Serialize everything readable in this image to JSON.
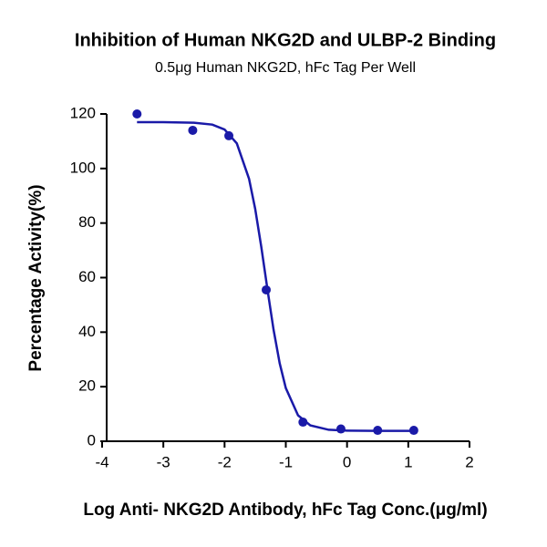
{
  "chart_data": {
    "type": "scatter",
    "title": "Inhibition of Human NKG2D and ULBP-2 Binding",
    "subtitle": "0.5μg Human NKG2D, hFc Tag Per Well",
    "x_label": "Log Anti- NKG2D Antibody, hFc Tag Conc.(μg/ml)",
    "y_label": "Percentage Activity(%)",
    "series": [
      {
        "mode": "markers",
        "color": "#1a1aa8",
        "x": [
          -3.43,
          -2.52,
          -1.93,
          -1.32,
          -0.72,
          -0.1,
          0.5,
          1.09
        ],
        "values": [
          120,
          114,
          112,
          55.5,
          7,
          4.5,
          4,
          4
        ]
      },
      {
        "mode": "line",
        "color": "#1a1aa8",
        "x": [
          -3.43,
          -3,
          -2.5,
          -2.2,
          -2,
          -1.8,
          -1.6,
          -1.5,
          -1.4,
          -1.3,
          -1.2,
          -1.1,
          -1,
          -0.8,
          -0.6,
          -0.3,
          0,
          0.5,
          1.09
        ],
        "values": [
          117,
          117,
          116.8,
          116.1,
          114.3,
          109.2,
          96.2,
          85.2,
          71.2,
          55.7,
          40.9,
          28.6,
          19.5,
          9.5,
          5.8,
          4.2,
          3.9,
          3.8,
          3.8
        ]
      }
    ],
    "xlim": [
      -4,
      2
    ],
    "xticks": [
      -4,
      -3,
      -2,
      -1,
      0,
      1,
      2
    ],
    "ylim": [
      0,
      120
    ],
    "yticks": [
      0,
      20,
      40,
      60,
      80,
      100,
      120
    ],
    "grid": false
  }
}
